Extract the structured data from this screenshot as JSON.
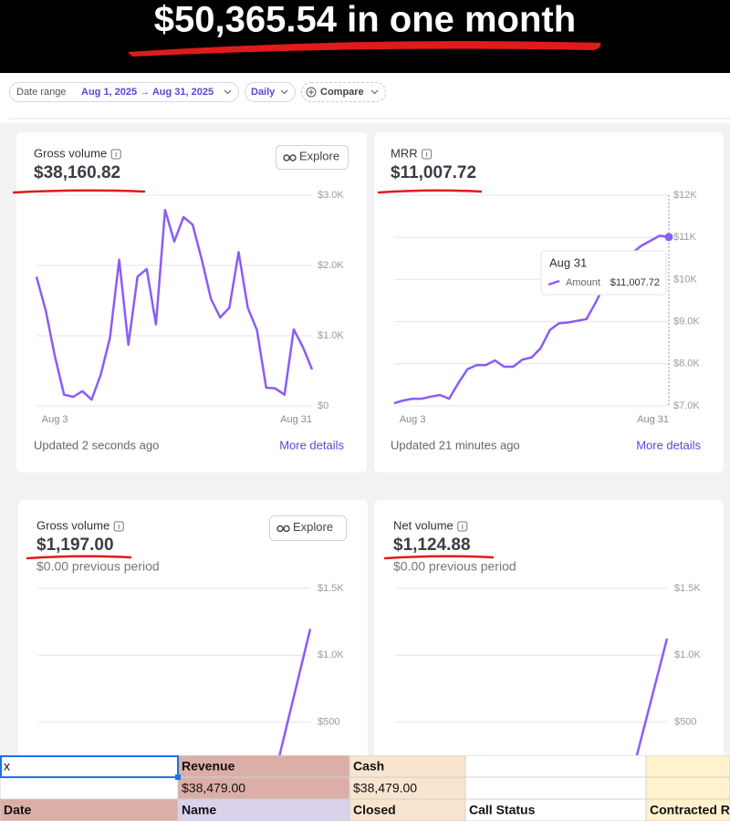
{
  "banner": {
    "title": "$50,365.54 in one month"
  },
  "toolbar": {
    "date_range_label": "Date range",
    "date_range": "Aug 1, 2025 → Aug 31, 2025",
    "interval": "Daily",
    "compare": "Compare"
  },
  "cards": [
    {
      "title": "Gross volume",
      "value": "$38,160.82",
      "button": "Explore",
      "footer": "Updated 2 seconds ago",
      "link": "More details",
      "chart": {
        "type": "line",
        "color": "#8b5cf6",
        "categories": [
          null,
          null,
          "Aug 3",
          null,
          null,
          null,
          null,
          null,
          null,
          null,
          null,
          null,
          null,
          null,
          null,
          null,
          null,
          null,
          null,
          null,
          null,
          null,
          null,
          null,
          null,
          null,
          null,
          null,
          null,
          null,
          "Aug 31"
        ],
        "values": [
          1840,
          1360,
          710,
          160,
          130,
          210,
          90,
          450,
          970,
          2080,
          870,
          1840,
          1950,
          1160,
          2790,
          2340,
          2690,
          2580,
          2080,
          1520,
          1260,
          1400,
          2190,
          1400,
          1080,
          260,
          250,
          160,
          1090,
          840,
          520
        ],
        "ylim": [
          0,
          3000
        ],
        "yticks": [
          {
            "value": 0,
            "label": "$0"
          },
          {
            "value": 1000,
            "label": "$1.0K"
          },
          {
            "value": 2000,
            "label": "$2.0K"
          },
          {
            "value": 3000,
            "label": "$3.0K"
          }
        ]
      }
    },
    {
      "title": "MRR",
      "value": "$11,007.72",
      "footer": "Updated 21 minutes ago",
      "link": "More details",
      "tooltip": {
        "date": "Aug 31",
        "name": "Amount",
        "value": "$11,007.72"
      },
      "chart": {
        "type": "line",
        "color": "#8b5cf6",
        "categories": [
          null,
          null,
          "Aug 3",
          null,
          null,
          null,
          null,
          null,
          null,
          null,
          null,
          null,
          null,
          null,
          null,
          null,
          null,
          null,
          null,
          null,
          null,
          null,
          null,
          null,
          null,
          null,
          null,
          null,
          null,
          null,
          "Aug 31"
        ],
        "values": [
          7065,
          7130,
          7170,
          7170,
          7220,
          7260,
          7170,
          7540,
          7870,
          7970,
          7970,
          8080,
          7930,
          7930,
          8100,
          8150,
          8370,
          8800,
          8960,
          8980,
          9020,
          9060,
          9450,
          9890,
          10150,
          10370,
          10630,
          10800,
          10920,
          11040,
          11007.72
        ],
        "ylim": [
          7000,
          12000
        ],
        "yticks": [
          {
            "value": 7000,
            "label": "$7.0K"
          },
          {
            "value": 8000,
            "label": "$8.0K"
          },
          {
            "value": 9000,
            "label": "$9.0K"
          },
          {
            "value": 10000,
            "label": "$10K"
          },
          {
            "value": 11000,
            "label": "$11K"
          },
          {
            "value": 12000,
            "label": "$12K"
          }
        ]
      }
    },
    {
      "title": "Gross volume",
      "value": "$1,197.00",
      "button": "Explore",
      "subtitle": "$0.00 previous period",
      "chart": {
        "type": "line",
        "color": "#8b5cf6",
        "values": [
          0,
          0,
          0,
          0,
          0,
          0,
          0,
          1197
        ],
        "ylim": [
          0,
          1500
        ],
        "yticks": [
          {
            "value": 500,
            "label": "$500"
          },
          {
            "value": 1000,
            "label": "$1.0K"
          },
          {
            "value": 1500,
            "label": "$1.5K"
          }
        ]
      }
    },
    {
      "title": "Net volume",
      "value": "$1,124.88",
      "subtitle": "$0.00 previous period",
      "chart": {
        "type": "line",
        "color": "#8b5cf6",
        "values": [
          0,
          0,
          0,
          0,
          0,
          0,
          0,
          1124.88
        ],
        "ylim": [
          0,
          1500
        ],
        "yticks": [
          {
            "value": 500,
            "label": "$500"
          },
          {
            "value": 1000,
            "label": "$1.0K"
          },
          {
            "value": 1500,
            "label": "$1.5K"
          }
        ]
      }
    }
  ],
  "sheet": {
    "rows": [
      [
        "x",
        "Revenue",
        "Cash"
      ],
      [
        "$38,479.00",
        "$38,479.00"
      ],
      [
        "Date",
        "Name",
        "Closed",
        "Call Status",
        "Contracted Revenue"
      ]
    ]
  }
}
